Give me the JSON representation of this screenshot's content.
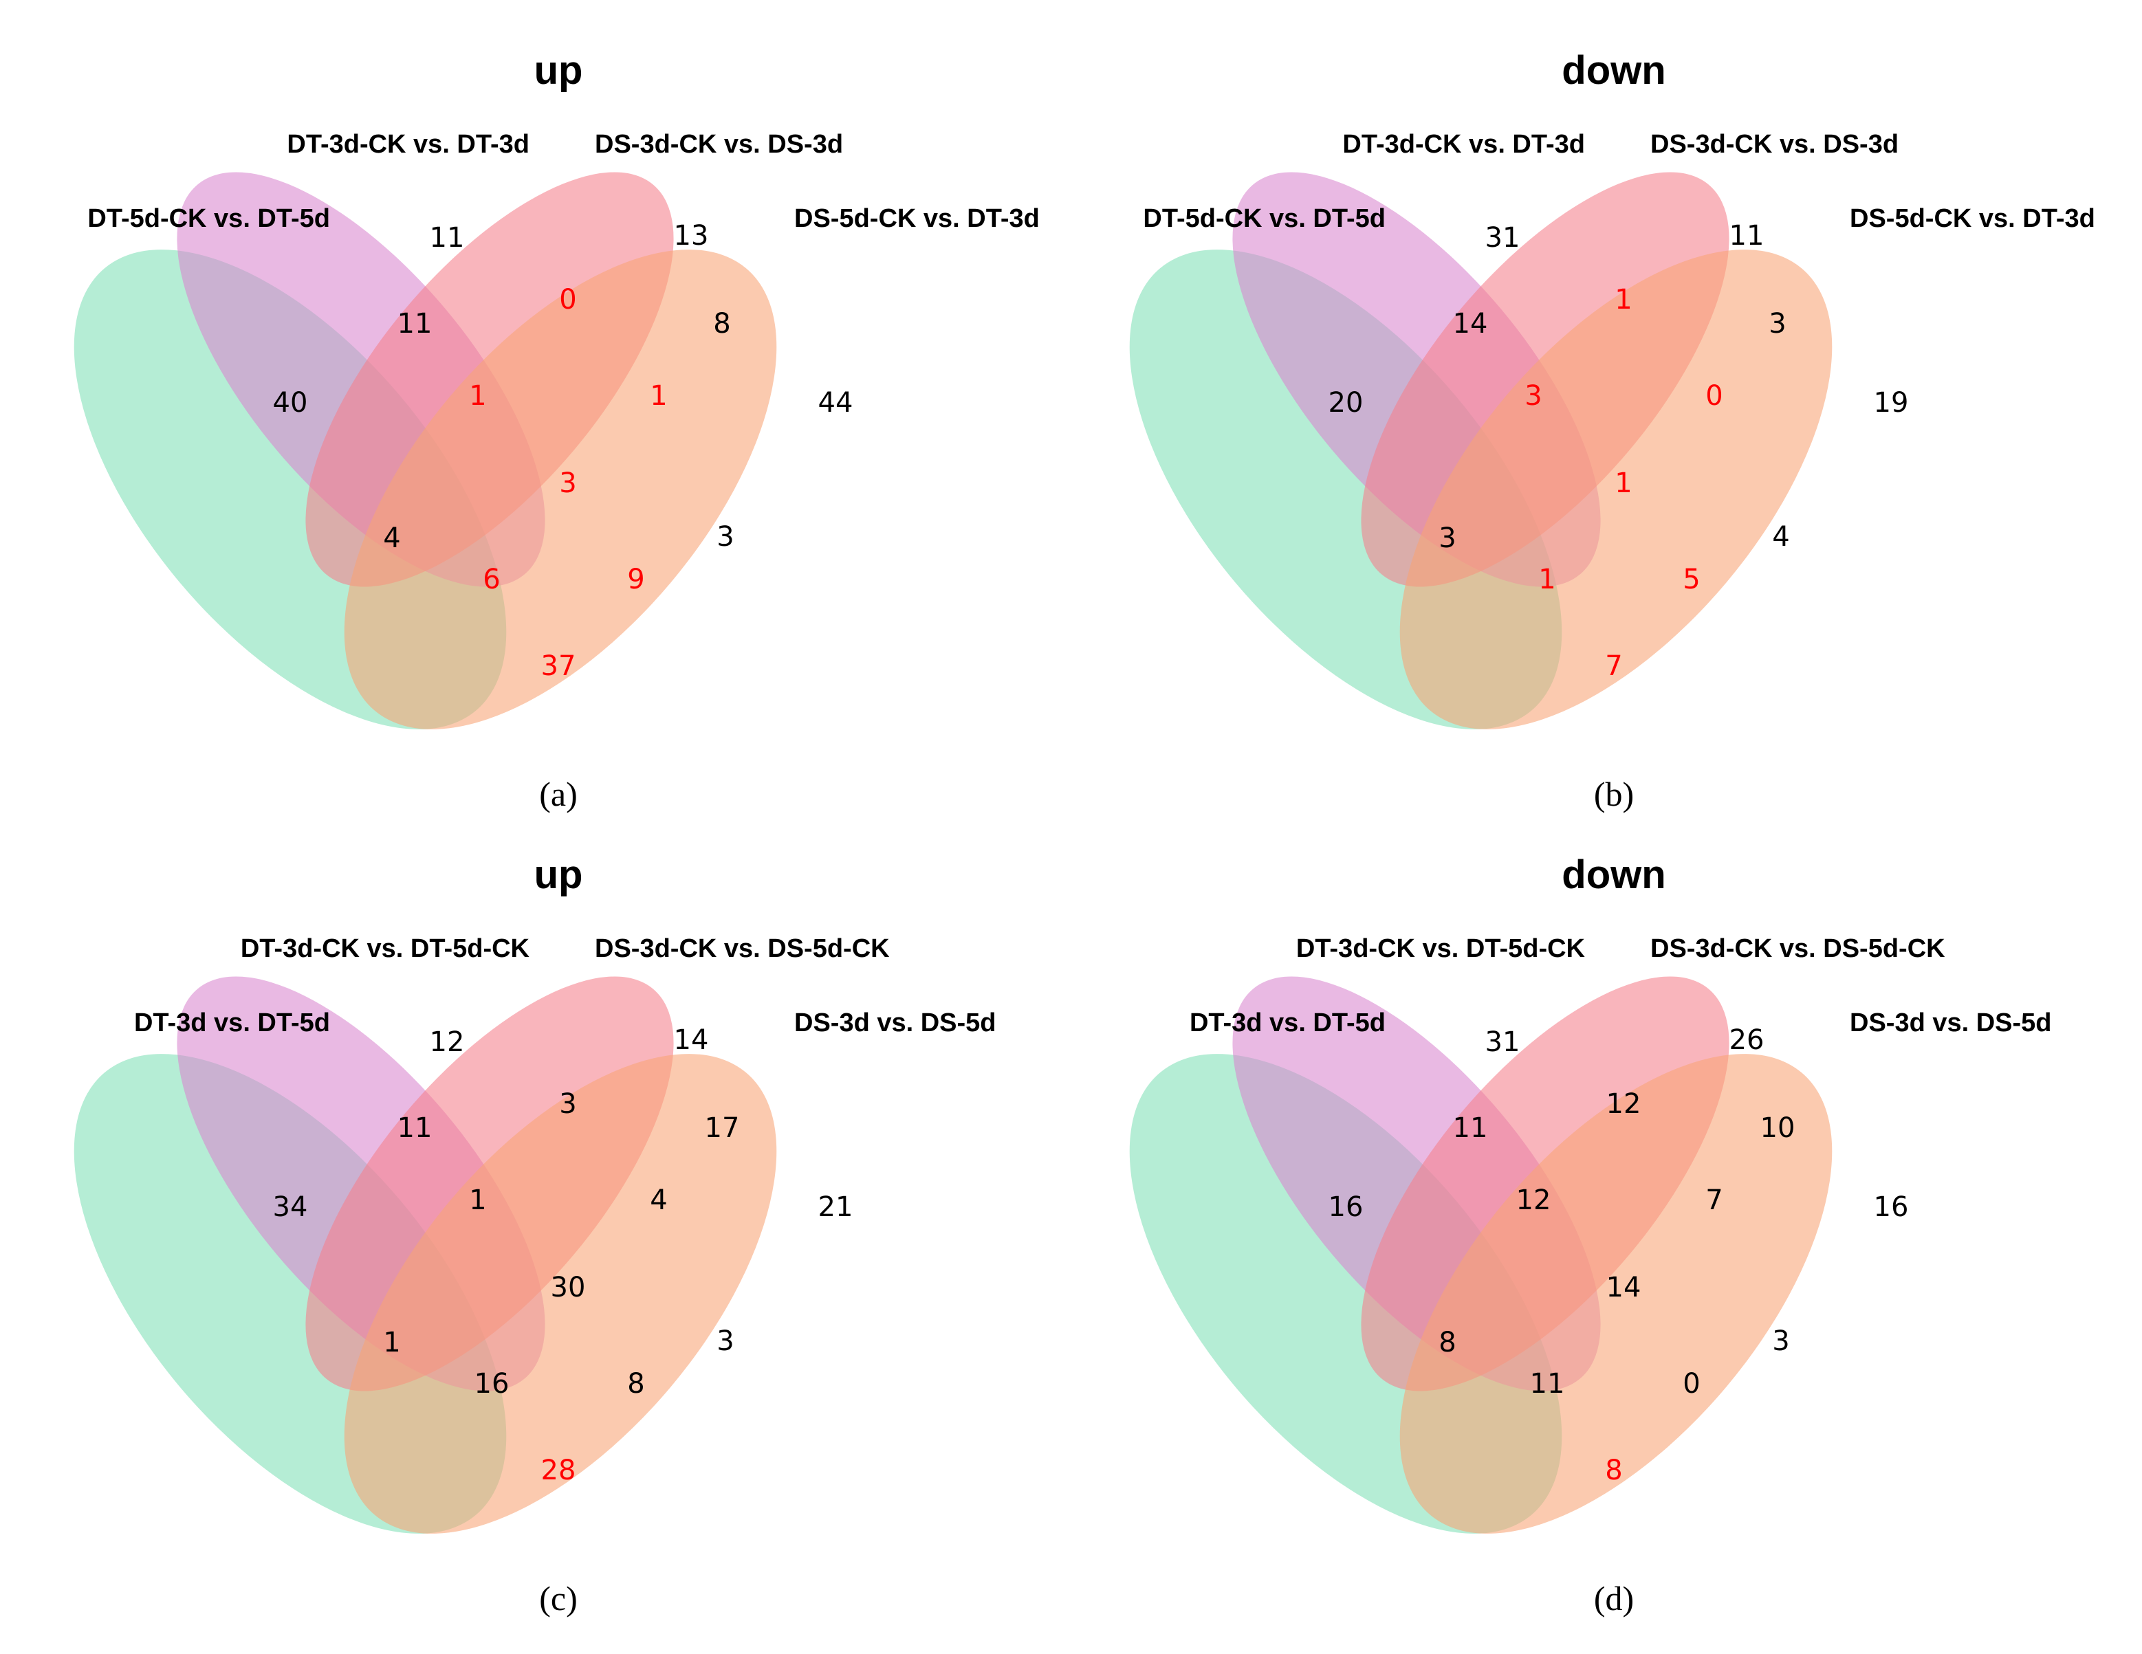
{
  "colors": {
    "set1": "#7fe0b7",
    "set2": "#d987cf",
    "set3": "#f47f8c",
    "set4": "#f8a476",
    "highlight_count": "#ff0000",
    "normal_count": "#000000"
  },
  "region_keys": [
    "A",
    "B",
    "C",
    "D",
    "AB",
    "BC",
    "CD",
    "ABC",
    "BCD",
    "ABCD",
    "AC",
    "BD",
    "ACD",
    "ABD",
    "AD"
  ],
  "panels": [
    {
      "title": "up",
      "panel_label": "(a)",
      "sets": [
        "DT-5d-CK vs. DT-5d",
        "DT-3d-CK vs. DT-3d",
        "DS-3d-CK vs. DS-3d",
        "DS-5d-CK vs. DT-3d"
      ],
      "regions": {
        "A": {
          "value": "40",
          "highlight": false
        },
        "B": {
          "value": "11",
          "highlight": false
        },
        "C": {
          "value": "13",
          "highlight": false
        },
        "D": {
          "value": "44",
          "highlight": false
        },
        "AB": {
          "value": "11",
          "highlight": false
        },
        "BC": {
          "value": "0",
          "highlight": true
        },
        "CD": {
          "value": "8",
          "highlight": false
        },
        "ABC": {
          "value": "1",
          "highlight": true
        },
        "BCD": {
          "value": "1",
          "highlight": true
        },
        "ABCD": {
          "value": "3",
          "highlight": true
        },
        "AC": {
          "value": "4",
          "highlight": false
        },
        "BD": {
          "value": "3",
          "highlight": false
        },
        "ACD": {
          "value": "6",
          "highlight": true
        },
        "ABD": {
          "value": "9",
          "highlight": true
        },
        "AD": {
          "value": "37",
          "highlight": true
        }
      }
    },
    {
      "title": "down",
      "panel_label": "(b)",
      "sets": [
        "DT-5d-CK vs. DT-5d",
        "DT-3d-CK vs. DT-3d",
        "DS-3d-CK vs. DS-3d",
        "DS-5d-CK vs. DT-3d"
      ],
      "regions": {
        "A": {
          "value": "20",
          "highlight": false
        },
        "B": {
          "value": "31",
          "highlight": false
        },
        "C": {
          "value": "11",
          "highlight": false
        },
        "D": {
          "value": "19",
          "highlight": false
        },
        "AB": {
          "value": "14",
          "highlight": false
        },
        "BC": {
          "value": "1",
          "highlight": true
        },
        "CD": {
          "value": "3",
          "highlight": false
        },
        "ABC": {
          "value": "3",
          "highlight": true
        },
        "BCD": {
          "value": "0",
          "highlight": true
        },
        "ABCD": {
          "value": "1",
          "highlight": true
        },
        "AC": {
          "value": "3",
          "highlight": false
        },
        "BD": {
          "value": "4",
          "highlight": false
        },
        "ACD": {
          "value": "1",
          "highlight": true
        },
        "ABD": {
          "value": "5",
          "highlight": true
        },
        "AD": {
          "value": "7",
          "highlight": true
        }
      }
    },
    {
      "title": "up",
      "panel_label": "(c)",
      "sets": [
        "DT-3d vs. DT-5d",
        "DT-3d-CK vs. DT-5d-CK",
        "DS-3d-CK vs. DS-5d-CK",
        "DS-3d vs. DS-5d"
      ],
      "regions": {
        "A": {
          "value": "34",
          "highlight": false
        },
        "B": {
          "value": "12",
          "highlight": false
        },
        "C": {
          "value": "14",
          "highlight": false
        },
        "D": {
          "value": "21",
          "highlight": false
        },
        "AB": {
          "value": "11",
          "highlight": false
        },
        "BC": {
          "value": "3",
          "highlight": false
        },
        "CD": {
          "value": "17",
          "highlight": false
        },
        "ABC": {
          "value": "1",
          "highlight": false
        },
        "BCD": {
          "value": "4",
          "highlight": false
        },
        "ABCD": {
          "value": "30",
          "highlight": false
        },
        "AC": {
          "value": "1",
          "highlight": false
        },
        "BD": {
          "value": "3",
          "highlight": false
        },
        "ACD": {
          "value": "16",
          "highlight": false
        },
        "ABD": {
          "value": "8",
          "highlight": false
        },
        "AD": {
          "value": "28",
          "highlight": true
        }
      }
    },
    {
      "title": "down",
      "panel_label": "(d)",
      "sets": [
        "DT-3d vs. DT-5d",
        "DT-3d-CK vs. DT-5d-CK",
        "DS-3d-CK vs. DS-5d-CK",
        "DS-3d vs. DS-5d"
      ],
      "regions": {
        "A": {
          "value": "16",
          "highlight": false
        },
        "B": {
          "value": "31",
          "highlight": false
        },
        "C": {
          "value": "26",
          "highlight": false
        },
        "D": {
          "value": "16",
          "highlight": false
        },
        "AB": {
          "value": "11",
          "highlight": false
        },
        "BC": {
          "value": "12",
          "highlight": false
        },
        "CD": {
          "value": "10",
          "highlight": false
        },
        "ABC": {
          "value": "12",
          "highlight": false
        },
        "BCD": {
          "value": "7",
          "highlight": false
        },
        "ABCD": {
          "value": "14",
          "highlight": false
        },
        "AC": {
          "value": "8",
          "highlight": false
        },
        "BD": {
          "value": "3",
          "highlight": false
        },
        "ACD": {
          "value": "11",
          "highlight": false
        },
        "ABD": {
          "value": "0",
          "highlight": false
        },
        "AD": {
          "value": "8",
          "highlight": true
        }
      }
    }
  ]
}
